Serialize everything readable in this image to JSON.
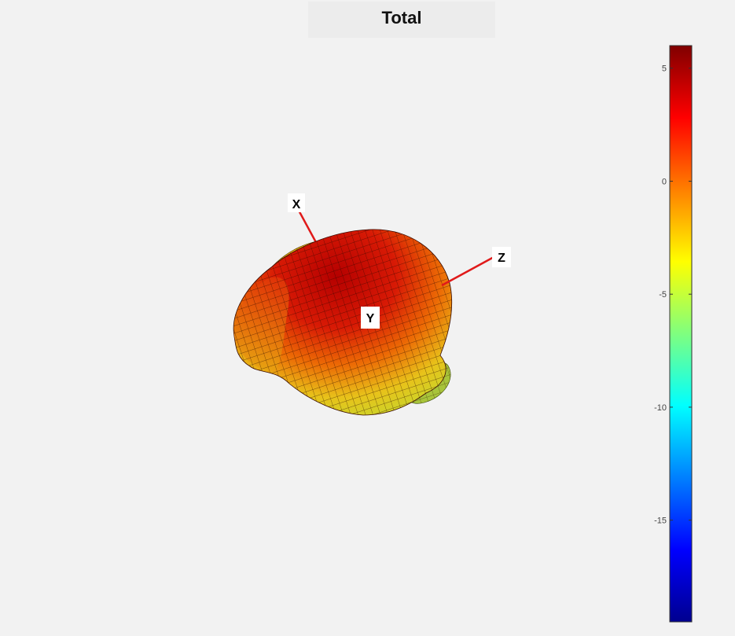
{
  "chart_data": {
    "type": "surface3d",
    "title": "Total",
    "axes_labels": [
      "X",
      "Y",
      "Z"
    ],
    "colorbar": {
      "colormap": "jet",
      "range": [
        -19.5,
        6
      ],
      "ticks": [
        5,
        0,
        -5,
        -10,
        -15
      ],
      "tick_labels": [
        "5",
        "0",
        "-5",
        "-10",
        "-15"
      ]
    },
    "surface_color_range": [
      -6,
      6
    ],
    "grid": false
  }
}
